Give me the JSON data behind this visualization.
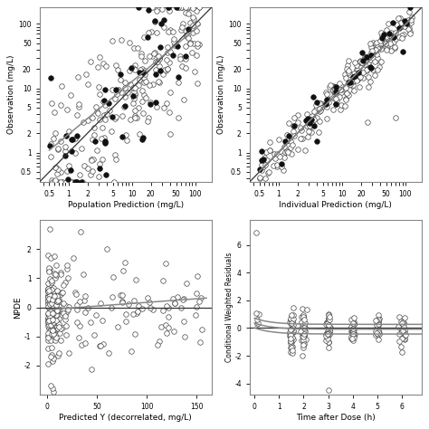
{
  "fig_size": [
    4.74,
    4.74
  ],
  "dpi": 100,
  "fig_bg": "#ffffff",
  "panel_bg": "#ffffff",
  "ax1": {
    "xlabel": "Population Prediction (mg/L)",
    "ylabel": "Observation (mg/L)",
    "xlim_log": [
      0.35,
      180
    ],
    "ylim_log": [
      0.35,
      180
    ],
    "xticks": [
      0.5,
      1,
      2,
      5,
      10,
      20,
      50,
      100
    ],
    "yticks": [
      0.5,
      1,
      2,
      5,
      10,
      20,
      50,
      100
    ],
    "tick_labels": [
      "0.5",
      "1",
      "2",
      "5",
      "10",
      "20",
      "50",
      "100"
    ]
  },
  "ax2": {
    "xlabel": "Individual Prediction (mg/L)",
    "ylabel": "Observation (mg/L)",
    "xlim_log": [
      0.35,
      180
    ],
    "ylim_log": [
      0.35,
      180
    ],
    "xticks": [
      0.5,
      1,
      2,
      5,
      10,
      20,
      50,
      100
    ],
    "yticks": [
      0.5,
      1,
      2,
      5,
      10,
      20,
      50,
      100
    ],
    "tick_labels": [
      "0.5",
      "1",
      "2",
      "5",
      "10",
      "20",
      "50",
      "100"
    ]
  },
  "ax3": {
    "xlabel": "Predicted Y (decorrelated, mg/L)",
    "ylabel": "NPDE",
    "xlim": [
      -8,
      165
    ],
    "ylim": [
      -3.0,
      3.0
    ],
    "xticks": [
      0,
      50,
      100,
      150
    ],
    "yticks": [
      -2,
      -1,
      0,
      1,
      2
    ]
  },
  "ax4": {
    "xlabel": "Time after Dose (h)",
    "ylabel": "Conditional Weighted Residuals",
    "xlim": [
      -0.2,
      6.8
    ],
    "ylim": [
      -4.8,
      7.8
    ],
    "xticks": [
      0,
      1,
      2,
      3,
      4,
      5,
      6
    ],
    "yticks": [
      -4,
      -2,
      0,
      2,
      4,
      6
    ]
  },
  "line_color_dark": "#333333",
  "line_color_gray": "#888888",
  "open_face": "#ffffff",
  "open_edge": "#444444",
  "filled_face": "#111111",
  "filled_edge": "#111111",
  "marker_size": 16,
  "marker_lw": 0.5,
  "spine_color": "#888888",
  "spine_lw": 0.8
}
